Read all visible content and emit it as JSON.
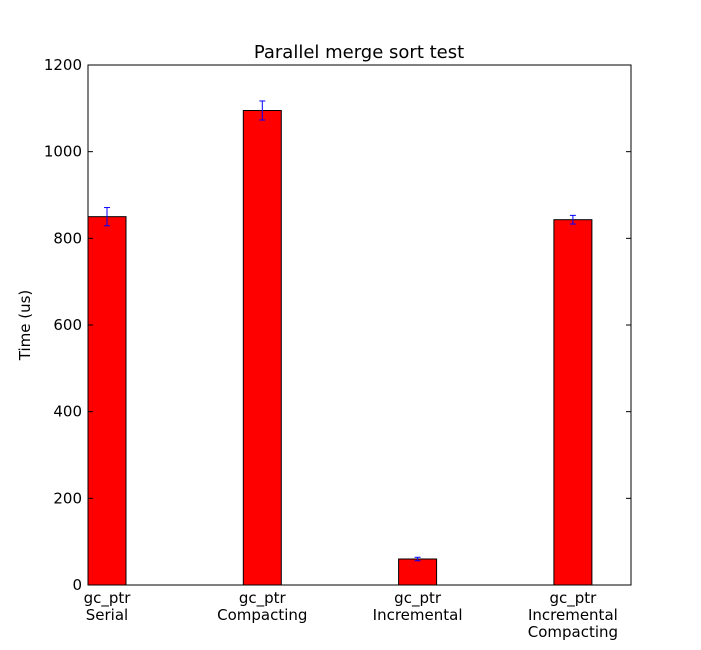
{
  "chart_data": {
    "type": "bar",
    "title": "Parallel merge sort test",
    "xlabel": "",
    "ylabel": "Time (us)",
    "ylim": [
      0,
      1200
    ],
    "yticks": [
      0,
      200,
      400,
      600,
      800,
      1000,
      1200
    ],
    "categories": [
      [
        "gc_ptr",
        "Serial"
      ],
      [
        "gc_ptr",
        "Compacting"
      ],
      [
        "gc_ptr",
        "Incremental"
      ],
      [
        "gc_ptr",
        "Incremental",
        "Compacting"
      ]
    ],
    "values": [
      850,
      1095,
      60,
      843
    ],
    "errors": [
      21,
      22,
      4,
      10
    ],
    "bar_color": "#ff0000",
    "error_color": "#0000ff",
    "grid": false,
    "legend": "none"
  }
}
